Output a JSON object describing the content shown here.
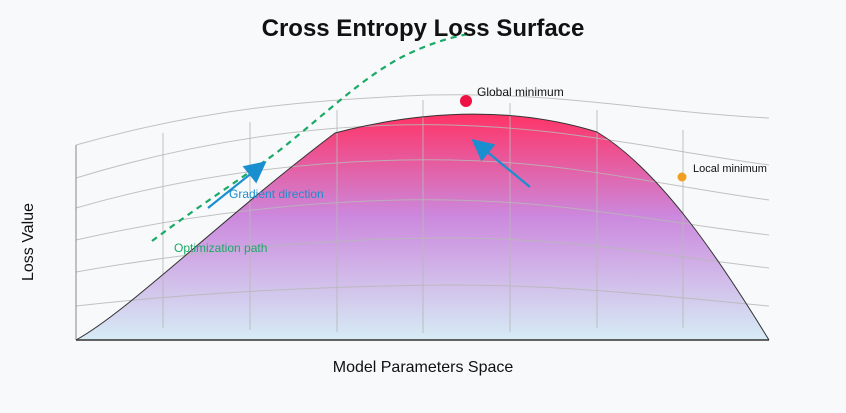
{
  "title": "Cross Entropy Loss Surface",
  "axes": {
    "x_label": "Model Parameters Space",
    "y_label": "Loss Value"
  },
  "annotations": {
    "global_minimum": "Global minimum",
    "local_minimum": "Local minimum",
    "gradient_direction": "Gradient direction",
    "optimization_path": "Optimization path"
  },
  "colors": {
    "background": "#f8f9fa",
    "surface_top": "#ff3366",
    "surface_mid": "#cc88dd",
    "surface_bottom": "#d6ecf5",
    "grid": "#b8b8b8",
    "global_minimum_marker": "#ee1144",
    "local_minimum_marker": "#f0a020",
    "gradient_arrow": "#1a8fd0",
    "optimization_path": "#1aaa66"
  }
}
